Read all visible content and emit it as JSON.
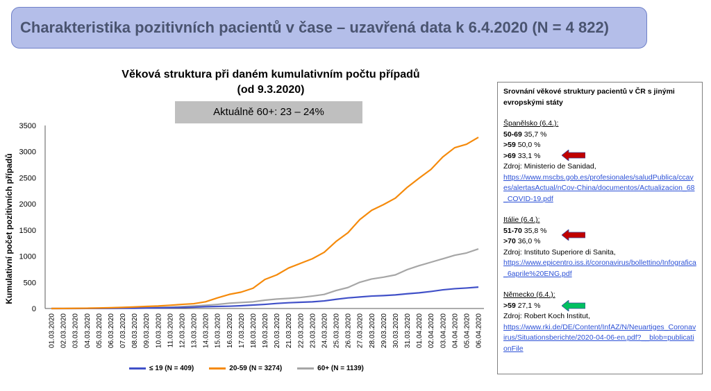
{
  "header": {
    "title": "Charakteristika pozitivních pacientů v čase – uzavřená data k 6.4.2020 (N = 4 822)"
  },
  "chart_subtitle_box": "Aktuálně 60+: 23 – 24%",
  "chart_data": {
    "type": "line",
    "title": "Věková struktura při daném kumulativním počtu případů",
    "subtitle": "(od 9.3.2020)",
    "xlabel": "",
    "ylabel": "Kumulativní počet pozitivních případů",
    "ylim": [
      0,
      3500
    ],
    "yticks": [
      0,
      500,
      1000,
      1500,
      2000,
      2500,
      3000,
      3500
    ],
    "grid": false,
    "legend_position": "bottom",
    "categories": [
      "01.03.2020",
      "02.03.2020",
      "03.03.2020",
      "04.03.2020",
      "05.03.2020",
      "06.03.2020",
      "07.03.2020",
      "08.03.2020",
      "09.03.2020",
      "10.03.2020",
      "11.03.2020",
      "12.03.2020",
      "13.03.2020",
      "14.03.2020",
      "15.03.2020",
      "16.03.2020",
      "17.03.2020",
      "18.03.2020",
      "19.03.2020",
      "20.03.2020",
      "21.03.2020",
      "22.03.2020",
      "23.03.2020",
      "24.03.2020",
      "25.03.2020",
      "26.03.2020",
      "27.03.2020",
      "28.03.2020",
      "29.03.2020",
      "30.03.2020",
      "31.03.2020",
      "01.04.2020",
      "02.04.2020",
      "03.04.2020",
      "04.04.2020",
      "05.04.2020",
      "06.04.2020"
    ],
    "series": [
      {
        "name": "≤ 19 (N = 409)",
        "color": "#4050c8",
        "values": [
          0,
          0,
          0,
          1,
          2,
          3,
          4,
          5,
          8,
          12,
          15,
          20,
          26,
          35,
          40,
          44,
          53,
          66,
          79,
          97,
          110,
          119,
          128,
          145,
          176,
          203,
          220,
          238,
          247,
          260,
          282,
          300,
          326,
          357,
          379,
          392,
          409
        ]
      },
      {
        "name": "20-59 (N = 3274)",
        "color": "#f58a0b",
        "values": [
          0,
          1,
          3,
          6,
          10,
          15,
          22,
          30,
          40,
          48,
          62,
          79,
          92,
          128,
          203,
          270,
          313,
          388,
          555,
          643,
          775,
          863,
          951,
          1075,
          1282,
          1449,
          1700,
          1877,
          1987,
          2110,
          2317,
          2493,
          2660,
          2899,
          3075,
          3141,
          3274
        ]
      },
      {
        "name": "60+ (N = 1139)",
        "color": "#a6a6a6",
        "values": [
          0,
          0,
          1,
          2,
          3,
          5,
          7,
          10,
          14,
          20,
          26,
          35,
          48,
          62,
          79,
          101,
          115,
          128,
          159,
          181,
          194,
          211,
          238,
          269,
          344,
          401,
          502,
          564,
          599,
          643,
          744,
          819,
          885,
          951,
          1018,
          1062,
          1139
        ]
      }
    ]
  },
  "panel": {
    "heading": "Srovnání věkové struktury pacientů v ČR s jinými evropskými státy",
    "spain": {
      "title": "Španělsko (6.4.):",
      "rows": [
        {
          "b": "50-69",
          "v": " 35,7 %"
        },
        {
          "b": ">59",
          "v": " 50,0 %"
        },
        {
          "b": ">69",
          "v": " 33,1 %"
        }
      ],
      "source": "Zdroj: Ministerio de Sanidad,",
      "link": "https://www.mscbs.gob.es/profesionales/saludPublica/ccayes/alertasActual/nCov-China/documentos/Actualizacion_68_COVID-19.pdf"
    },
    "italy": {
      "title": "Itálie (6.4.):",
      "rows": [
        {
          "b": "51-70",
          "v": " 35,8 %"
        },
        {
          "b": ">70",
          "v": " 36,0 %"
        }
      ],
      "source": "Zdroj: Instituto Superiore di Sanita,",
      "link": "https://www.epicentro.iss.it/coronavirus/bollettino/Infografica_6aprile%20ENG.pdf"
    },
    "germany": {
      "title": "Německo (6.4.):",
      "rows": [
        {
          "b": ">59",
          "v": " 27,1 %"
        }
      ],
      "source": "Zdroj: Robert Koch Institut,",
      "link": "https://www.rki.de/DE/Content/InfAZ/N/Neuartiges_Coronavirus/Situationsberichte/2020-04-06-en.pdf?__blob=publicationFile"
    },
    "arrow_colors": {
      "red": "#c00000",
      "green": "#00b050"
    }
  }
}
